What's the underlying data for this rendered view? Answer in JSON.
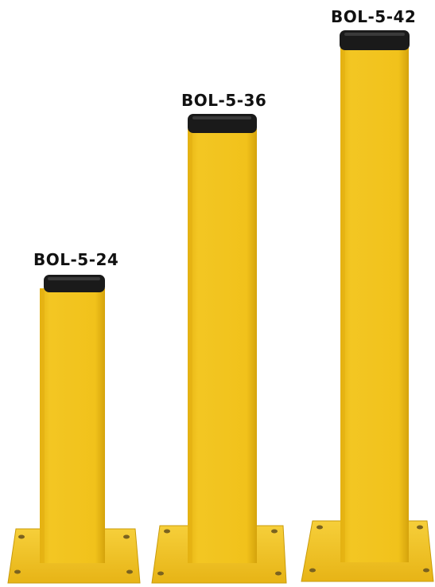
{
  "bollards": [
    {
      "model": "BOL-5-24"
    },
    {
      "model": "BOL-5-36"
    },
    {
      "model": "BOL-5-42"
    }
  ],
  "colors": {
    "post_yellow": "#f1c21b",
    "post_shadow": "#d9a90f",
    "cap_black": "#1a1a1a",
    "base_yellow": "#f0c11d"
  }
}
